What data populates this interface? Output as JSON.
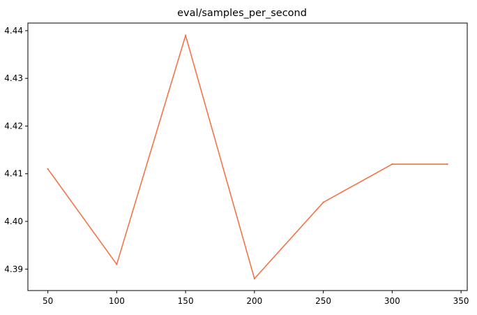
{
  "chart_data": {
    "type": "line",
    "title": "eval/samples_per_second",
    "xlabel": "",
    "ylabel": "",
    "x": [
      50,
      100,
      150,
      200,
      250,
      300,
      340
    ],
    "series": [
      {
        "name": "eval/samples_per_second",
        "values": [
          4.411,
          4.391,
          4.439,
          4.388,
          4.404,
          4.412,
          4.412
        ],
        "color": "#f27448"
      }
    ],
    "xlim": [
      35.5,
      354.5
    ],
    "ylim": [
      4.3855,
      4.4416
    ],
    "xticks": [
      50,
      100,
      150,
      200,
      250,
      300,
      350
    ],
    "xtick_labels": [
      "50",
      "100",
      "150",
      "200",
      "250",
      "300",
      "350"
    ],
    "yticks": [
      4.39,
      4.4,
      4.41,
      4.42,
      4.43,
      4.44
    ],
    "ytick_labels": [
      "4.39",
      "4.40",
      "4.41",
      "4.42",
      "4.43",
      "4.44"
    ],
    "grid": false,
    "legend": "none"
  }
}
